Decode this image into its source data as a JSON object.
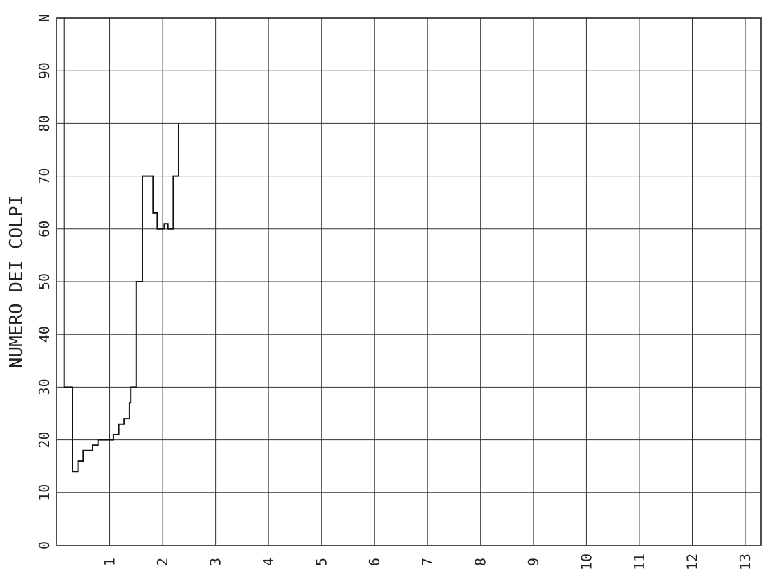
{
  "chart_data": {
    "type": "line",
    "title": "",
    "ylabel": "NUMERO DEI COLPI",
    "xlabel": "",
    "xlim": [
      0,
      13.3
    ],
    "ylim": [
      0,
      100
    ],
    "grid": true,
    "x_ticks": [
      {
        "value": 1,
        "label": "1"
      },
      {
        "value": 2,
        "label": "2"
      },
      {
        "value": 3,
        "label": "3"
      },
      {
        "value": 4,
        "label": "4"
      },
      {
        "value": 5,
        "label": "5"
      },
      {
        "value": 6,
        "label": "6"
      },
      {
        "value": 7,
        "label": "7"
      },
      {
        "value": 8,
        "label": "8"
      },
      {
        "value": 9,
        "label": "9"
      },
      {
        "value": 10,
        "label": "10"
      },
      {
        "value": 11,
        "label": "11"
      },
      {
        "value": 12,
        "label": "12"
      },
      {
        "value": 13,
        "label": "13"
      }
    ],
    "y_ticks": [
      {
        "value": 0,
        "label": "0"
      },
      {
        "value": 10,
        "label": "10"
      },
      {
        "value": 20,
        "label": "20"
      },
      {
        "value": 30,
        "label": "30"
      },
      {
        "value": 40,
        "label": "40"
      },
      {
        "value": 50,
        "label": "50"
      },
      {
        "value": 60,
        "label": "60"
      },
      {
        "value": 70,
        "label": "70"
      },
      {
        "value": 80,
        "label": "80"
      },
      {
        "value": 90,
        "label": "90"
      },
      {
        "value": 100,
        "label": "N"
      }
    ],
    "series": [
      {
        "points": [
          [
            0.14,
            100
          ],
          [
            0.14,
            30
          ],
          [
            0.3,
            30
          ],
          [
            0.3,
            14
          ],
          [
            0.4,
            14
          ],
          [
            0.4,
            16
          ],
          [
            0.5,
            16
          ],
          [
            0.5,
            18
          ],
          [
            0.68,
            18
          ],
          [
            0.68,
            19
          ],
          [
            0.78,
            19
          ],
          [
            0.78,
            20
          ],
          [
            1.07,
            20
          ],
          [
            1.07,
            21
          ],
          [
            1.17,
            21
          ],
          [
            1.17,
            23
          ],
          [
            1.27,
            23
          ],
          [
            1.27,
            24
          ],
          [
            1.37,
            24
          ],
          [
            1.37,
            27
          ],
          [
            1.4,
            27
          ],
          [
            1.4,
            30
          ],
          [
            1.5,
            30
          ],
          [
            1.5,
            50
          ],
          [
            1.62,
            50
          ],
          [
            1.62,
            70
          ],
          [
            1.82,
            70
          ],
          [
            1.82,
            63
          ],
          [
            1.9,
            63
          ],
          [
            1.9,
            60
          ],
          [
            2.03,
            60
          ],
          [
            2.03,
            61
          ],
          [
            2.1,
            61
          ],
          [
            2.1,
            60
          ],
          [
            2.2,
            60
          ],
          [
            2.2,
            70
          ],
          [
            2.3,
            70
          ],
          [
            2.3,
            80
          ]
        ]
      }
    ]
  }
}
